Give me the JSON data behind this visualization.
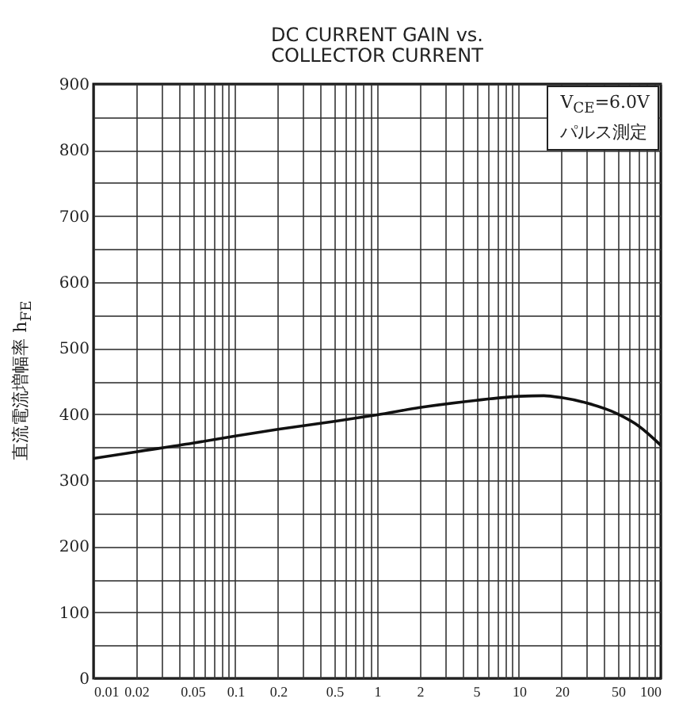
{
  "chart_data": {
    "type": "line",
    "title": "DC CURRENT GAIN vs.\nCOLLECTOR CURRENT",
    "ylabel": "直流電流増幅率  h$_{FE}$",
    "annotations": [
      "V$_{CE}$=6.0V",
      "パルス測定"
    ],
    "x": [
      0.01,
      0.02,
      0.05,
      0.1,
      0.2,
      0.5,
      1,
      2,
      5,
      10,
      15,
      20,
      30,
      50,
      70,
      100
    ],
    "series": [
      {
        "color": "#111111",
        "values": [
          333,
          343,
          356,
          367,
          377,
          389,
          399,
          410,
          421,
          427,
          428,
          425,
          417,
          400,
          382,
          353
        ]
      }
    ],
    "log": "x",
    "xlim": [
      0.01,
      100
    ],
    "ylim": [
      0,
      900
    ],
    "xticks": [
      0.01,
      0.02,
      {
        "value": 0.03,
        "label": null
      },
      {
        "value": 0.04,
        "label": null
      },
      0.05,
      {
        "value": 0.06,
        "label": null
      },
      {
        "value": 0.07,
        "label": null
      },
      {
        "value": 0.08,
        "label": null
      },
      {
        "value": 0.09,
        "label": null
      },
      0.1,
      0.2,
      {
        "value": 0.3,
        "label": null
      },
      {
        "value": 0.4,
        "label": null
      },
      0.5,
      {
        "value": 0.6,
        "label": null
      },
      {
        "value": 0.7,
        "label": null
      },
      {
        "value": 0.8,
        "label": null
      },
      {
        "value": 0.9,
        "label": null
      },
      1,
      2,
      {
        "value": 3,
        "label": null
      },
      {
        "value": 4,
        "label": null
      },
      5,
      {
        "value": 6,
        "label": null
      },
      {
        "value": 7,
        "label": null
      },
      {
        "value": 8,
        "label": null
      },
      {
        "value": 9,
        "label": null
      },
      10,
      20,
      {
        "value": 30,
        "label": null
      },
      {
        "value": 40,
        "label": null
      },
      50,
      {
        "value": 60,
        "label": null
      },
      {
        "value": 70,
        "label": null
      },
      {
        "value": 80,
        "label": null
      },
      {
        "value": 90,
        "label": null
      },
      100
    ],
    "yticks": [
      0,
      {
        "value": 50,
        "label": null
      },
      100,
      {
        "value": 150,
        "label": null
      },
      200,
      {
        "value": 250,
        "label": null
      },
      300,
      {
        "value": 350,
        "label": null
      },
      400,
      {
        "value": 450,
        "label": null
      },
      500,
      {
        "value": 550,
        "label": null
      },
      600,
      {
        "value": 650,
        "label": null
      },
      700,
      {
        "value": 750,
        "label": null
      },
      800,
      {
        "value": 850,
        "label": null
      },
      900
    ],
    "grid": true,
    "line_style": "solid"
  }
}
